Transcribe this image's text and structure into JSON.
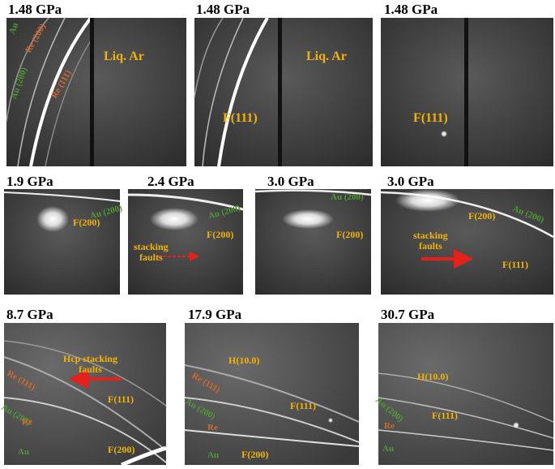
{
  "panels": [
    {
      "label": "1.48 GPa",
      "annotations": [
        "Au",
        "Re (200)",
        "Au (200)",
        "Re (111)",
        "Liq. Ar"
      ]
    },
    {
      "label": "1.48 GPa",
      "annotations": [
        "Liq. Ar",
        "F(111)"
      ]
    },
    {
      "label": "1.48 GPa",
      "annotations": [
        "F(111)"
      ]
    },
    {
      "label": "1.9 GPa",
      "annotations": [
        "Au (200)",
        "F(200)"
      ]
    },
    {
      "label": "2.4 GPa",
      "annotations": [
        "Au (200)",
        "F(200)",
        "stacking\nfaults"
      ]
    },
    {
      "label": "3.0 GPa",
      "annotations": [
        "Au (200)",
        "F(200)"
      ]
    },
    {
      "label": "3.0 GPa",
      "annotations": [
        "Au (200)",
        "F(200)",
        "stacking\nfaults",
        "F(111)"
      ]
    },
    {
      "label": "8.7 GPa",
      "annotations": [
        "Hcp stacking\nfaults",
        "Re (111)",
        "F(111)",
        "Au (200)",
        "Re",
        "F(200)",
        "Au"
      ]
    },
    {
      "label": "17.9 GPa",
      "annotations": [
        "H(10.0)",
        "Re (111)",
        "Au (200)",
        "F(111)",
        "Re",
        "Au",
        "F(200)"
      ]
    },
    {
      "label": "30.7 GPa",
      "annotations": [
        "H(10.0)",
        "Au (200)",
        "F(111)",
        "Re",
        "Au"
      ]
    }
  ]
}
